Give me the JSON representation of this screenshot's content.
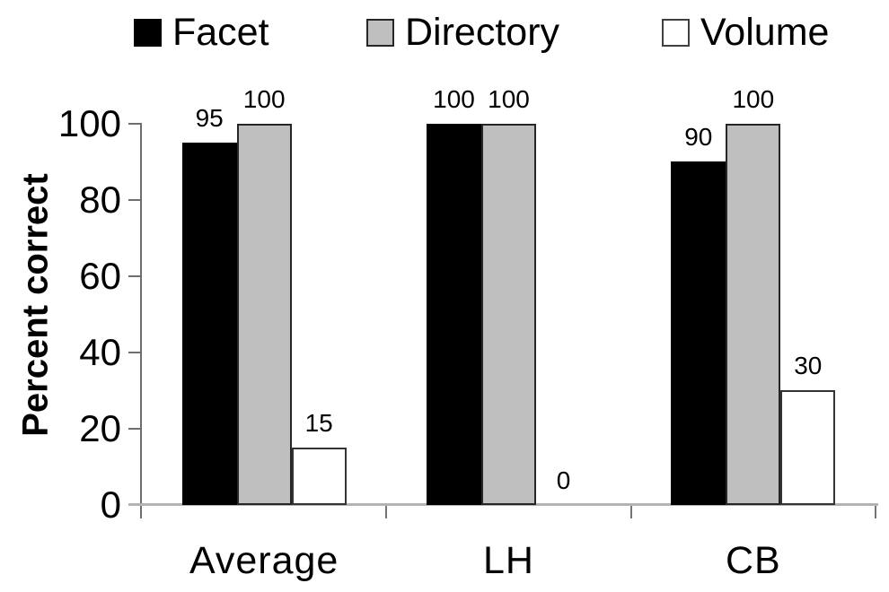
{
  "chart_data": {
    "type": "bar",
    "title": "",
    "ylabel": "Percent correct",
    "xlabel": "",
    "categories": [
      "Average",
      "LH",
      "CB"
    ],
    "series": [
      {
        "name": "Facet",
        "color": "#000000",
        "values": [
          95,
          100,
          90
        ]
      },
      {
        "name": "Directory",
        "color": "#bfbfbf",
        "values": [
          100,
          100,
          100
        ]
      },
      {
        "name": "Volume",
        "color": "#ffffff",
        "values": [
          15,
          0,
          30
        ]
      }
    ],
    "ylim": [
      0,
      100
    ],
    "yticks": [
      0,
      20,
      40,
      60,
      80,
      100
    ],
    "grid": false,
    "legend_position": "top",
    "data_labels": true,
    "axis_color": "#6e6e6e",
    "baseline_color": "#b3b3b3",
    "bar_border_color": "#262626"
  }
}
